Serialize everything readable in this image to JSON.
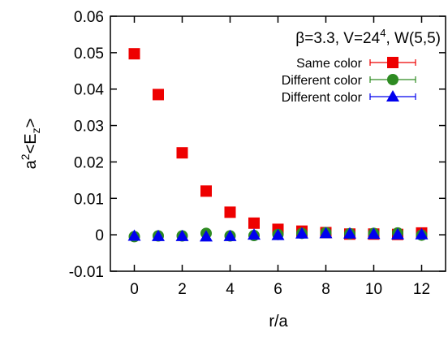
{
  "chart_data": {
    "type": "scatter",
    "title_main": "β=3.3, V=24",
    "title_sup": "4",
    "title_tail": ", W(5,5)",
    "xlabel": "r/a",
    "ylabel_base": "a",
    "ylabel_sup": "2",
    "ylabel_mid": "<E",
    "ylabel_sub": "z",
    "ylabel_end": ">",
    "xlim": [
      -1,
      13
    ],
    "ylim": [
      -0.01,
      0.06
    ],
    "xticks": [
      0,
      2,
      4,
      6,
      8,
      10,
      12
    ],
    "xtick_labels": [
      "0",
      "2",
      "4",
      "6",
      "8",
      "10",
      "12"
    ],
    "yticks": [
      -0.01,
      0,
      0.01,
      0.02,
      0.03,
      0.04,
      0.05,
      0.06
    ],
    "ytick_labels": [
      "-0.01",
      "0",
      "0.01",
      "0.02",
      "0.03",
      "0.04",
      "0.05",
      "0.06"
    ],
    "grid": false,
    "legend_position": "top-right",
    "series": [
      {
        "name": "Same color",
        "marker": "square",
        "color": "#ee0000",
        "x": [
          0,
          1,
          2,
          3,
          4,
          5,
          6,
          7,
          8,
          9,
          10,
          11,
          12
        ],
        "y": [
          0.0497,
          0.0385,
          0.0225,
          0.012,
          0.0062,
          0.0032,
          0.0015,
          0.001,
          0.0006,
          0.0002,
          0.0002,
          0.0001,
          0.0005
        ]
      },
      {
        "name": "Different color",
        "marker": "circle",
        "color": "#2e8b22",
        "x": [
          0,
          1,
          2,
          3,
          4,
          5,
          6,
          7,
          8,
          9,
          10,
          11,
          12
        ],
        "y": [
          -0.0005,
          -0.0003,
          -0.0003,
          0.0004,
          -0.0003,
          -0.0002,
          0.0001,
          0.0004,
          0.0006,
          0.0003,
          0.0004,
          0.0005,
          -0.0001
        ]
      },
      {
        "name": "Different color",
        "marker": "triangle",
        "color": "#0000ee",
        "x": [
          0,
          1,
          2,
          3,
          4,
          5,
          6,
          7,
          8,
          9,
          10,
          11,
          12
        ],
        "y": [
          -0.0003,
          -0.0004,
          -0.0004,
          -0.0005,
          -0.0004,
          0.0,
          -0.0001,
          0.0003,
          0.0004,
          0.0003,
          0.0002,
          0.0001,
          0.0001
        ]
      }
    ]
  }
}
